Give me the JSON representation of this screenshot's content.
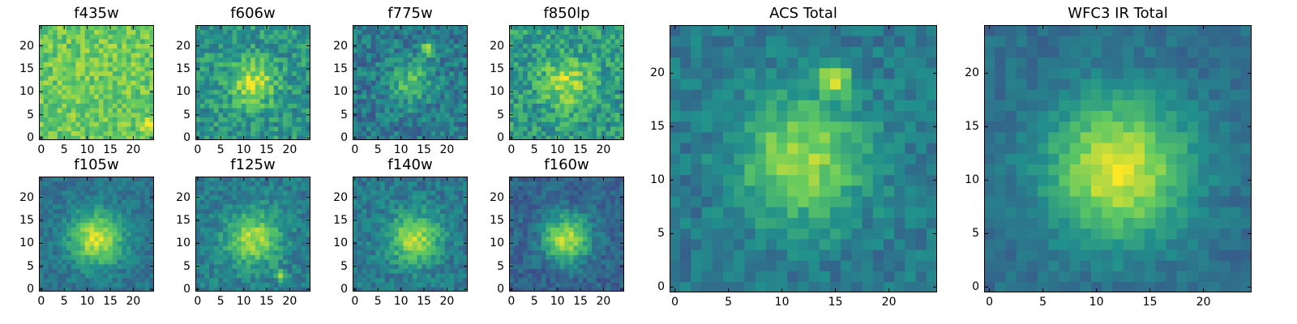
{
  "figure": {
    "colormap": "viridis",
    "colormap_stops": [
      "#440154",
      "#3b528b",
      "#21918c",
      "#5ec962",
      "#fde725"
    ],
    "frame_color": "#000000",
    "background_color": "#ffffff"
  },
  "chart_data": [
    {
      "id": "f435w",
      "type": "heatmap",
      "title": "f435w",
      "grid_size": 24,
      "xlim": [
        0,
        24
      ],
      "ylim": [
        0,
        24
      ],
      "xticks": [
        0,
        5,
        10,
        15,
        20
      ],
      "yticks": [
        0,
        5,
        10,
        15,
        20
      ],
      "xtick_labels": [
        "0",
        "5",
        "10",
        "15",
        "20"
      ],
      "ytick_labels": [
        "0",
        "5",
        "10",
        "15",
        "20"
      ],
      "background_level": 0.74,
      "noise": 0.14,
      "features": [
        {
          "x": 12,
          "y": 12,
          "sigma": 8,
          "amp": 0.03
        },
        {
          "x": 23,
          "y": 3,
          "sigma": 1.0,
          "amp": 0.25
        }
      ]
    },
    {
      "id": "f606w",
      "type": "heatmap",
      "title": "f606w",
      "grid_size": 24,
      "xlim": [
        0,
        24
      ],
      "ylim": [
        0,
        24
      ],
      "xticks": [
        0,
        5,
        10,
        15,
        20
      ],
      "yticks": [
        0,
        5,
        10,
        15,
        20
      ],
      "xtick_labels": [
        "0",
        "5",
        "10",
        "15",
        "20"
      ],
      "ytick_labels": [
        "0",
        "5",
        "10",
        "15",
        "20"
      ],
      "background_level": 0.52,
      "noise": 0.16,
      "features": [
        {
          "x": 12,
          "y": 12,
          "sigma": 3.5,
          "amp": 0.38
        }
      ]
    },
    {
      "id": "f775w",
      "type": "heatmap",
      "title": "f775w",
      "grid_size": 24,
      "xlim": [
        0,
        24
      ],
      "ylim": [
        0,
        24
      ],
      "xticks": [
        0,
        5,
        10,
        15,
        20
      ],
      "yticks": [
        0,
        5,
        10,
        15,
        20
      ],
      "xtick_labels": [
        "0",
        "5",
        "10",
        "15",
        "20"
      ],
      "ytick_labels": [
        "0",
        "5",
        "10",
        "15",
        "20"
      ],
      "background_level": 0.4,
      "noise": 0.15,
      "features": [
        {
          "x": 12,
          "y": 12,
          "sigma": 3.2,
          "amp": 0.33
        },
        {
          "x": 16,
          "y": 19.5,
          "sigma": 0.9,
          "amp": 0.6
        }
      ]
    },
    {
      "id": "f850lp",
      "type": "heatmap",
      "title": "f850lp",
      "grid_size": 24,
      "xlim": [
        0,
        24
      ],
      "ylim": [
        0,
        24
      ],
      "xticks": [
        0,
        5,
        10,
        15,
        20
      ],
      "yticks": [
        0,
        5,
        10,
        15,
        20
      ],
      "xtick_labels": [
        "0",
        "5",
        "10",
        "15",
        "20"
      ],
      "ytick_labels": [
        "0",
        "5",
        "10",
        "15",
        "20"
      ],
      "background_level": 0.55,
      "noise": 0.17,
      "features": [
        {
          "x": 12,
          "y": 12,
          "sigma": 3.5,
          "amp": 0.35
        }
      ]
    },
    {
      "id": "f105w",
      "type": "heatmap",
      "title": "f105w",
      "grid_size": 24,
      "xlim": [
        0,
        24
      ],
      "ylim": [
        0,
        24
      ],
      "xticks": [
        0,
        5,
        10,
        15,
        20
      ],
      "yticks": [
        0,
        5,
        10,
        15,
        20
      ],
      "xtick_labels": [
        "0",
        "5",
        "10",
        "15",
        "20"
      ],
      "ytick_labels": [
        "0",
        "5",
        "10",
        "15",
        "20"
      ],
      "background_level": 0.38,
      "noise": 0.09,
      "features": [
        {
          "x": 12,
          "y": 11,
          "sigma": 4.0,
          "amp": 0.55
        }
      ]
    },
    {
      "id": "f125w",
      "type": "heatmap",
      "title": "f125w",
      "grid_size": 24,
      "xlim": [
        0,
        24
      ],
      "ylim": [
        0,
        24
      ],
      "xticks": [
        0,
        5,
        10,
        15,
        20
      ],
      "yticks": [
        0,
        5,
        10,
        15,
        20
      ],
      "xtick_labels": [
        "0",
        "5",
        "10",
        "15",
        "20"
      ],
      "ytick_labels": [
        "0",
        "5",
        "10",
        "15",
        "20"
      ],
      "background_level": 0.42,
      "noise": 0.11,
      "features": [
        {
          "x": 12,
          "y": 11,
          "sigma": 4.0,
          "amp": 0.45
        },
        {
          "x": 18,
          "y": 3,
          "sigma": 0.8,
          "amp": 0.4
        }
      ]
    },
    {
      "id": "f140w",
      "type": "heatmap",
      "title": "f140w",
      "grid_size": 24,
      "xlim": [
        0,
        24
      ],
      "ylim": [
        0,
        24
      ],
      "xticks": [
        0,
        5,
        10,
        15,
        20
      ],
      "yticks": [
        0,
        5,
        10,
        15,
        20
      ],
      "xtick_labels": [
        "0",
        "5",
        "10",
        "15",
        "20"
      ],
      "ytick_labels": [
        "0",
        "5",
        "10",
        "15",
        "20"
      ],
      "background_level": 0.4,
      "noise": 0.11,
      "features": [
        {
          "x": 13,
          "y": 11,
          "sigma": 3.8,
          "amp": 0.48
        }
      ]
    },
    {
      "id": "f160w",
      "type": "heatmap",
      "title": "f160w",
      "grid_size": 24,
      "xlim": [
        0,
        24
      ],
      "ylim": [
        0,
        24
      ],
      "xticks": [
        0,
        5,
        10,
        15,
        20
      ],
      "yticks": [
        0,
        5,
        10,
        15,
        20
      ],
      "xtick_labels": [
        "0",
        "5",
        "10",
        "15",
        "20"
      ],
      "ytick_labels": [
        "0",
        "5",
        "10",
        "15",
        "20"
      ],
      "background_level": 0.32,
      "noise": 0.1,
      "features": [
        {
          "x": 12,
          "y": 11,
          "sigma": 3.5,
          "amp": 0.58
        }
      ]
    },
    {
      "id": "acs-total",
      "type": "heatmap",
      "title": "ACS Total",
      "grid_size": 24,
      "xlim": [
        0,
        24
      ],
      "ylim": [
        0,
        24
      ],
      "xticks": [
        0,
        5,
        10,
        15,
        20
      ],
      "yticks": [
        0,
        5,
        10,
        15,
        20
      ],
      "xtick_labels": [
        "0",
        "5",
        "10",
        "15",
        "20"
      ],
      "ytick_labels": [
        "0",
        "5",
        "10",
        "15",
        "20"
      ],
      "background_level": 0.4,
      "noise": 0.1,
      "features": [
        {
          "x": 12,
          "y": 12,
          "sigma": 4.2,
          "amp": 0.45
        },
        {
          "x": 15,
          "y": 19.5,
          "sigma": 1.0,
          "amp": 0.5
        }
      ]
    },
    {
      "id": "wfc3-ir-total",
      "type": "heatmap",
      "title": "WFC3 IR Total",
      "grid_size": 24,
      "xlim": [
        0,
        24
      ],
      "ylim": [
        0,
        24
      ],
      "xticks": [
        0,
        5,
        10,
        15,
        20
      ],
      "yticks": [
        0,
        5,
        10,
        15,
        20
      ],
      "xtick_labels": [
        "0",
        "5",
        "10",
        "15",
        "20"
      ],
      "ytick_labels": [
        "0",
        "5",
        "10",
        "15",
        "20"
      ],
      "background_level": 0.36,
      "noise": 0.07,
      "features": [
        {
          "x": 12,
          "y": 11,
          "sigma": 4.5,
          "amp": 0.6
        }
      ]
    }
  ]
}
